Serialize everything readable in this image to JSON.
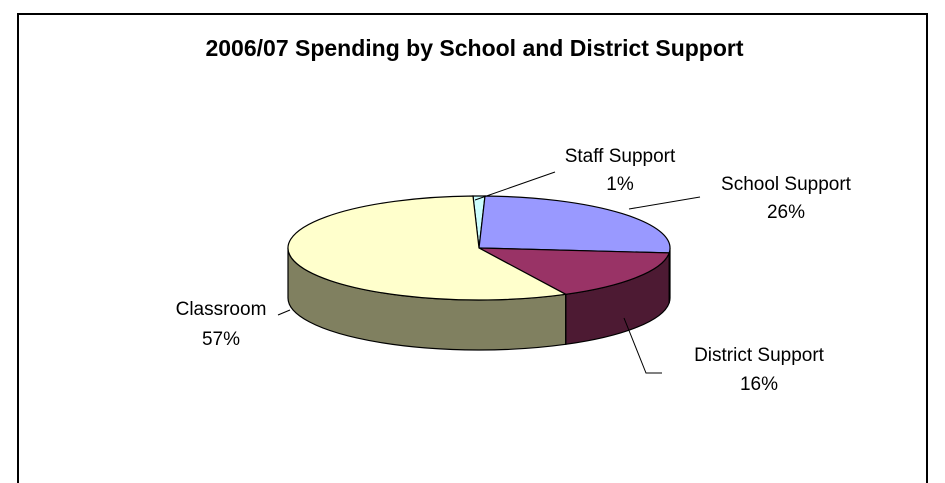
{
  "chart_data": {
    "type": "pie",
    "title": "2006/07 Spending by School and District Support",
    "three_d": true,
    "slices": [
      {
        "name": "Classroom",
        "value": 57,
        "label": "57%",
        "top_color": "#ffffcc",
        "side_color": "#808060"
      },
      {
        "name": "Staff Support",
        "value": 1,
        "label": "1%",
        "top_color": "#ccffff",
        "side_color": "#66807f"
      },
      {
        "name": "School Support",
        "value": 26,
        "label": "26%",
        "top_color": "#9999ff",
        "side_color": "#4d4d80"
      },
      {
        "name": "District Support",
        "value": 16,
        "label": "16%",
        "top_color": "#993366",
        "side_color": "#4d1a33"
      }
    ],
    "legend": "none",
    "data_labels": "category and percent, outside with leader lines"
  }
}
